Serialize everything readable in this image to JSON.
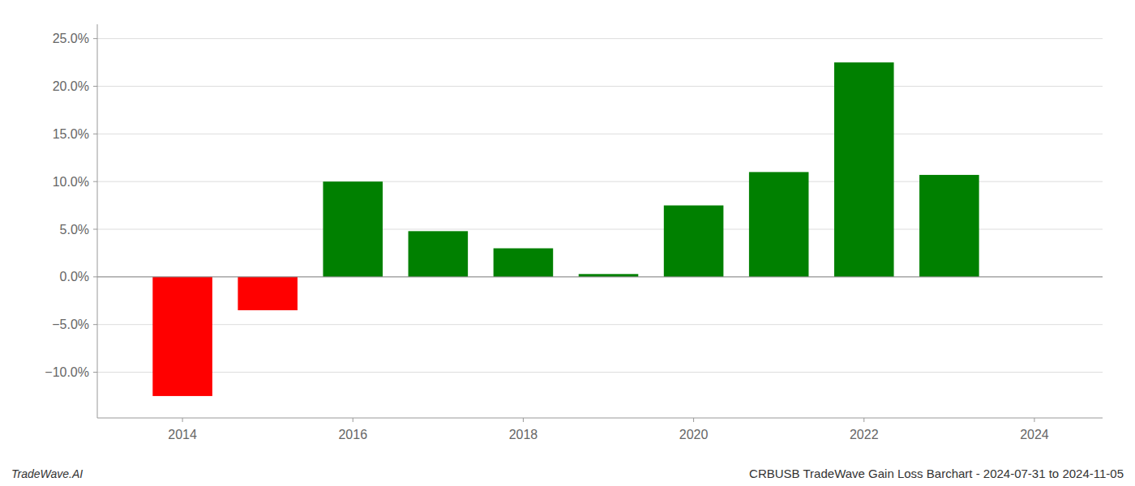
{
  "chart_data": {
    "type": "bar",
    "title": "CRBUSB TradeWave Gain Loss Barchart - 2024-07-31 to 2024-11-05",
    "annotations": [
      "TradeWave.AI"
    ],
    "x": [
      2014,
      2015,
      2016,
      2017,
      2018,
      2019,
      2020,
      2021,
      2022,
      2023
    ],
    "values": [
      -0.125,
      -0.035,
      0.1,
      0.048,
      0.03,
      0.003,
      0.075,
      0.11,
      0.225,
      0.107
    ],
    "colors": [
      "#ff0000",
      "#ff0000",
      "#008000",
      "#008000",
      "#008000",
      "#008000",
      "#008000",
      "#008000",
      "#008000",
      "#008000"
    ],
    "xlim": [
      2013.0,
      2024.8
    ],
    "xticks": [
      2014,
      2016,
      2018,
      2020,
      2022,
      2024
    ],
    "ylim": [
      -0.148,
      0.265
    ],
    "yticks": [
      {
        "value": -0.1,
        "label": "−10.0%"
      },
      {
        "value": -0.05,
        "label": "−5.0%"
      },
      {
        "value": 0.0,
        "label": "0.0%"
      },
      {
        "value": 0.05,
        "label": "5.0%"
      },
      {
        "value": 0.1,
        "label": "10.0%"
      },
      {
        "value": 0.15,
        "label": "15.0%"
      },
      {
        "value": 0.2,
        "label": "20.0%"
      },
      {
        "value": 0.25,
        "label": "25.0%"
      }
    ],
    "grid": true
  }
}
